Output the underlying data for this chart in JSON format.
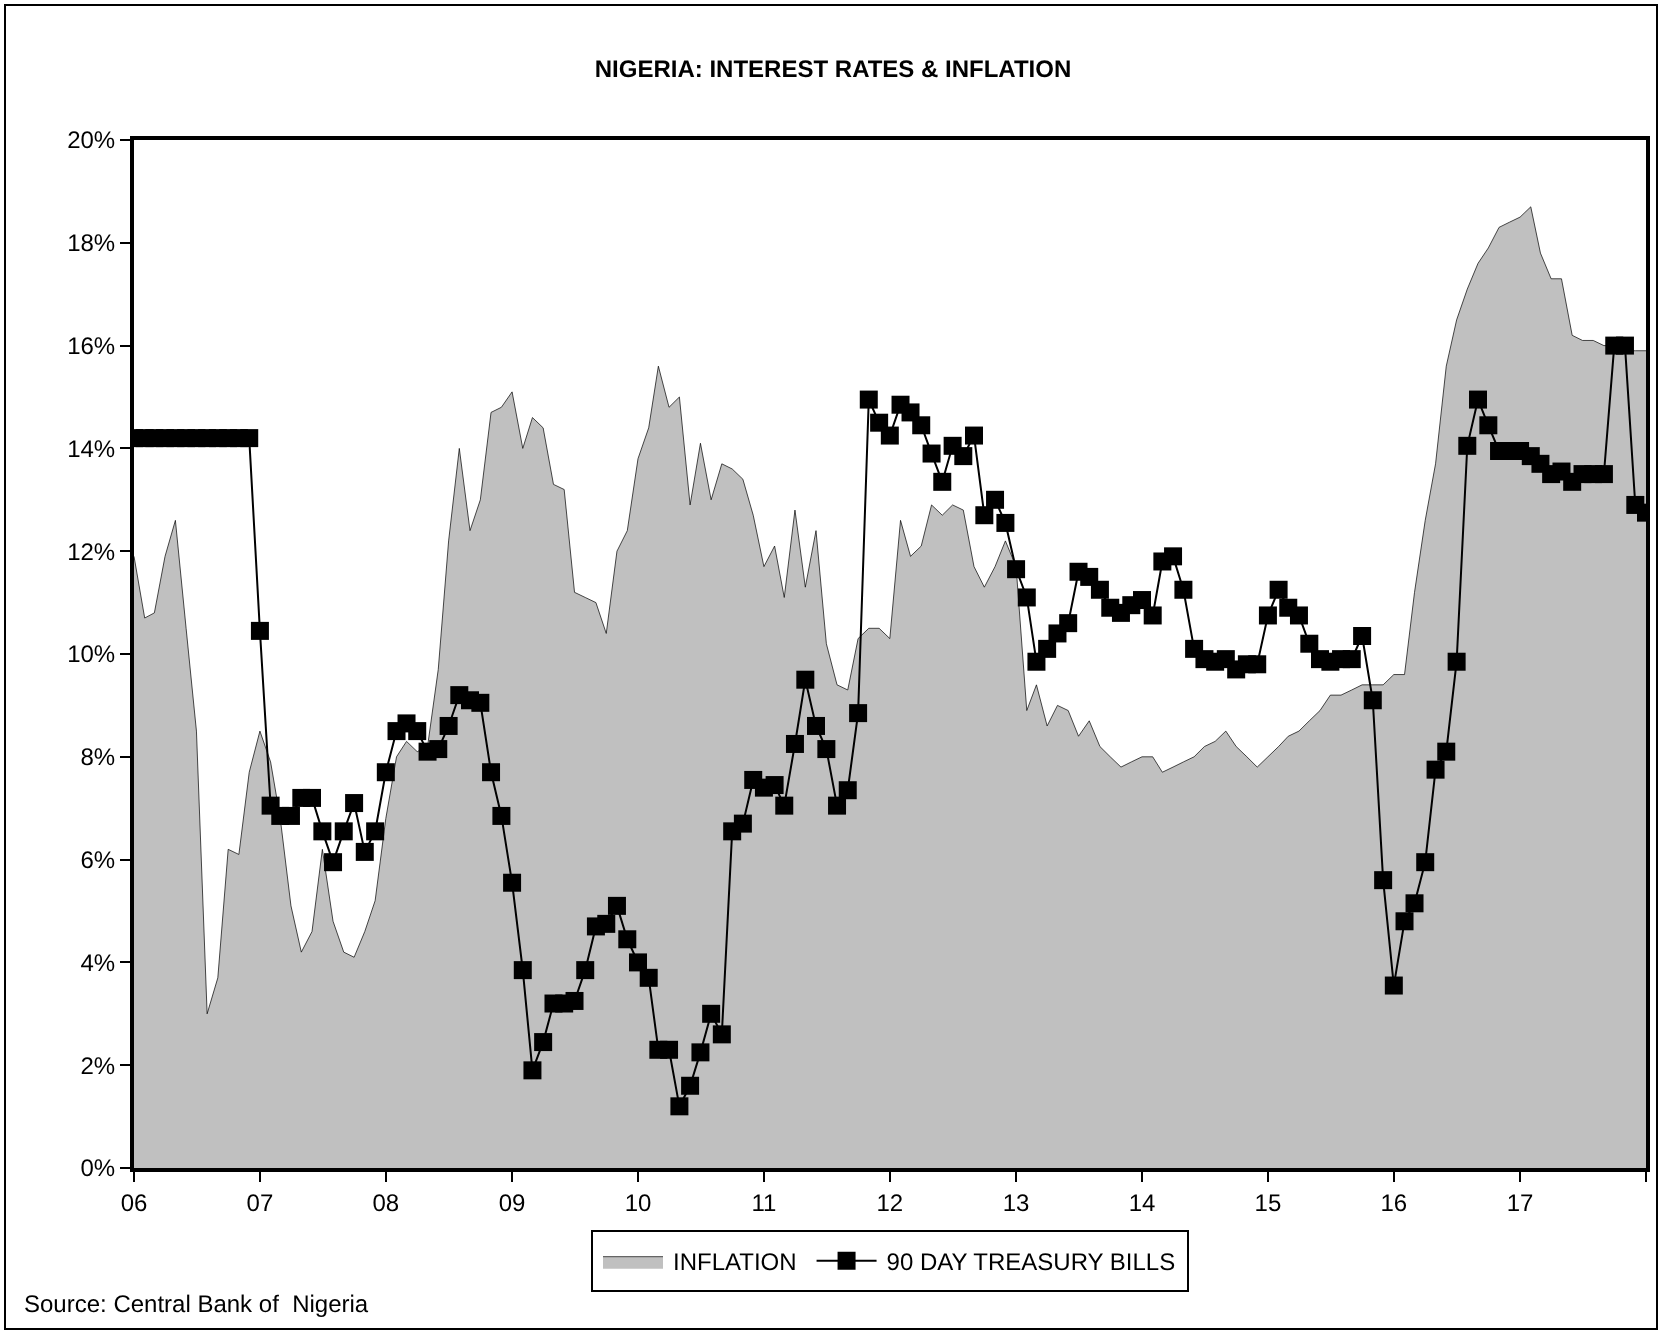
{
  "chart_data": {
    "type": "line",
    "title": "NIGERIA: INTEREST RATES & INFLATION",
    "x": [
      "2006-01",
      "2006-02",
      "2006-03",
      "2006-04",
      "2006-05",
      "2006-06",
      "2006-07",
      "2006-08",
      "2006-09",
      "2006-10",
      "2006-11",
      "2006-12",
      "2007-01",
      "2007-02",
      "2007-03",
      "2007-04",
      "2007-05",
      "2007-06",
      "2007-07",
      "2007-08",
      "2007-09",
      "2007-10",
      "2007-11",
      "2007-12",
      "2008-01",
      "2008-02",
      "2008-03",
      "2008-04",
      "2008-05",
      "2008-06",
      "2008-07",
      "2008-08",
      "2008-09",
      "2008-10",
      "2008-11",
      "2008-12",
      "2009-01",
      "2009-02",
      "2009-03",
      "2009-04",
      "2009-05",
      "2009-06",
      "2009-07",
      "2009-08",
      "2009-09",
      "2009-10",
      "2009-11",
      "2009-12",
      "2010-01",
      "2010-02",
      "2010-03",
      "2010-04",
      "2010-05",
      "2010-06",
      "2010-07",
      "2010-08",
      "2010-09",
      "2010-10",
      "2010-11",
      "2010-12",
      "2011-01",
      "2011-02",
      "2011-03",
      "2011-04",
      "2011-05",
      "2011-06",
      "2011-07",
      "2011-08",
      "2011-09",
      "2011-10",
      "2011-11",
      "2011-12",
      "2012-01",
      "2012-02",
      "2012-03",
      "2012-04",
      "2012-05",
      "2012-06",
      "2012-07",
      "2012-08",
      "2012-09",
      "2012-10",
      "2012-11",
      "2012-12",
      "2013-01",
      "2013-02",
      "2013-03",
      "2013-04",
      "2013-05",
      "2013-06",
      "2013-07",
      "2013-08",
      "2013-09",
      "2013-10",
      "2013-11",
      "2013-12",
      "2014-01",
      "2014-02",
      "2014-03",
      "2014-04",
      "2014-05",
      "2014-06",
      "2014-07",
      "2014-08",
      "2014-09",
      "2014-10",
      "2014-11",
      "2014-12",
      "2015-01",
      "2015-02",
      "2015-03",
      "2015-04",
      "2015-05",
      "2015-06",
      "2015-07",
      "2015-08",
      "2015-09",
      "2015-10",
      "2015-11",
      "2015-12",
      "2016-01",
      "2016-02",
      "2016-03",
      "2016-04",
      "2016-05",
      "2016-06",
      "2016-07",
      "2016-08",
      "2016-09",
      "2016-10",
      "2016-11",
      "2016-12",
      "2017-01",
      "2017-02",
      "2017-03",
      "2017-04",
      "2017-05",
      "2017-06",
      "2017-07",
      "2017-08",
      "2017-09",
      "2017-10",
      "2017-11",
      "2017-12",
      "2018-01"
    ],
    "series": [
      {
        "name": "INFLATION",
        "type": "area",
        "color": "#c0c0c0",
        "values": [
          11.9,
          10.7,
          10.8,
          11.9,
          12.6,
          10.5,
          8.5,
          3.0,
          3.7,
          6.2,
          6.1,
          7.7,
          8.5,
          7.9,
          6.8,
          5.1,
          4.2,
          4.6,
          6.2,
          4.8,
          4.2,
          4.1,
          4.6,
          5.2,
          6.8,
          8.0,
          8.3,
          8.1,
          8.2,
          9.7,
          12.2,
          14.0,
          12.4,
          13.0,
          14.7,
          14.8,
          15.1,
          14.0,
          14.6,
          14.4,
          13.3,
          13.2,
          11.2,
          11.1,
          11.0,
          10.4,
          12.0,
          12.4,
          13.8,
          14.4,
          15.6,
          14.8,
          15.0,
          12.9,
          14.1,
          13.0,
          13.7,
          13.6,
          13.4,
          12.7,
          11.7,
          12.1,
          11.1,
          12.8,
          11.3,
          12.4,
          10.2,
          9.4,
          9.3,
          10.3,
          10.5,
          10.5,
          10.3,
          12.6,
          11.9,
          12.1,
          12.9,
          12.7,
          12.9,
          12.8,
          11.7,
          11.3,
          11.7,
          12.2,
          11.7,
          8.9,
          9.4,
          8.6,
          9.0,
          8.9,
          8.4,
          8.7,
          8.2,
          8.0,
          7.8,
          7.9,
          8.0,
          8.0,
          7.7,
          7.8,
          7.9,
          8.0,
          8.2,
          8.3,
          8.5,
          8.2,
          8.0,
          7.8,
          8.0,
          8.2,
          8.4,
          8.5,
          8.7,
          8.9,
          9.2,
          9.2,
          9.3,
          9.4,
          9.4,
          9.4,
          9.6,
          9.6,
          11.2,
          12.6,
          13.7,
          15.6,
          16.5,
          17.1,
          17.6,
          17.9,
          18.3,
          18.4,
          18.5,
          18.7,
          17.8,
          17.3,
          17.3,
          16.2,
          16.1,
          16.1,
          16.0,
          16.0,
          15.9,
          15.9,
          15.9
        ]
      },
      {
        "name": "90 DAY TREASURY BILLS",
        "color": "#000000",
        "marker": "square",
        "values": [
          14.2,
          14.2,
          14.2,
          14.2,
          14.2,
          14.2,
          14.2,
          14.2,
          14.2,
          14.2,
          14.2,
          14.2,
          10.45,
          7.05,
          6.85,
          6.85,
          7.2,
          7.2,
          6.55,
          5.95,
          6.55,
          7.1,
          6.15,
          6.55,
          7.7,
          8.5,
          8.65,
          8.5,
          8.1,
          8.15,
          8.6,
          9.2,
          9.1,
          9.05,
          7.7,
          6.85,
          5.55,
          3.85,
          1.9,
          2.45,
          3.2,
          3.2,
          3.25,
          3.85,
          4.7,
          4.75,
          5.1,
          4.45,
          4.0,
          3.7,
          2.3,
          2.3,
          1.2,
          1.6,
          2.25,
          3.0,
          2.6,
          6.55,
          6.7,
          7.55,
          7.4,
          7.45,
          7.05,
          8.25,
          9.5,
          8.6,
          8.15,
          7.05,
          7.35,
          8.85,
          14.95,
          14.5,
          14.25,
          14.85,
          14.7,
          14.45,
          13.9,
          13.35,
          14.05,
          13.85,
          14.25,
          12.7,
          13.0,
          12.55,
          11.65,
          11.1,
          9.85,
          10.1,
          10.4,
          10.6,
          11.6,
          11.5,
          11.25,
          10.9,
          10.8,
          10.95,
          11.05,
          10.75,
          11.8,
          11.9,
          11.25,
          10.1,
          9.9,
          9.85,
          9.9,
          9.7,
          9.8,
          9.8,
          10.75,
          11.25,
          10.9,
          10.75,
          10.2,
          9.9,
          9.85,
          9.9,
          9.9,
          10.35,
          9.1,
          5.6,
          3.55,
          4.8,
          5.15,
          5.95,
          7.75,
          8.1,
          9.85,
          14.05,
          14.95,
          14.45,
          13.95,
          13.95,
          13.95,
          13.85,
          13.7,
          13.5,
          13.55,
          13.35,
          13.5,
          13.5,
          13.5,
          16.0,
          16.0,
          12.9,
          12.75
        ]
      }
    ],
    "xlim": [
      "2006-01",
      "2018-01"
    ],
    "xticks": [
      {
        "value": "2006-01",
        "label": "06"
      },
      {
        "value": "2007-01",
        "label": "07"
      },
      {
        "value": "2008-01",
        "label": "08"
      },
      {
        "value": "2009-01",
        "label": "09"
      },
      {
        "value": "2010-01",
        "label": "10"
      },
      {
        "value": "2011-01",
        "label": "11"
      },
      {
        "value": "2012-01",
        "label": "12"
      },
      {
        "value": "2013-01",
        "label": "13"
      },
      {
        "value": "2014-01",
        "label": "14"
      },
      {
        "value": "2015-01",
        "label": "15"
      },
      {
        "value": "2016-01",
        "label": "16"
      },
      {
        "value": "2017-01",
        "label": "17"
      },
      {
        "value": "2018-01",
        "label": null
      }
    ],
    "ylim": [
      0,
      20
    ],
    "yticks": [
      {
        "value": 0,
        "label": "0%"
      },
      {
        "value": 2,
        "label": "2%"
      },
      {
        "value": 4,
        "label": "4%"
      },
      {
        "value": 6,
        "label": "6%"
      },
      {
        "value": 8,
        "label": "8%"
      },
      {
        "value": 10,
        "label": "10%"
      },
      {
        "value": 12,
        "label": "12%"
      },
      {
        "value": 14,
        "label": "14%"
      },
      {
        "value": 16,
        "label": "16%"
      },
      {
        "value": 18,
        "label": "18%"
      },
      {
        "value": 20,
        "label": "20%"
      }
    ],
    "grid": false,
    "legend": "bottom",
    "annotations": [
      "Source: Central Bank of  Nigeria"
    ]
  }
}
